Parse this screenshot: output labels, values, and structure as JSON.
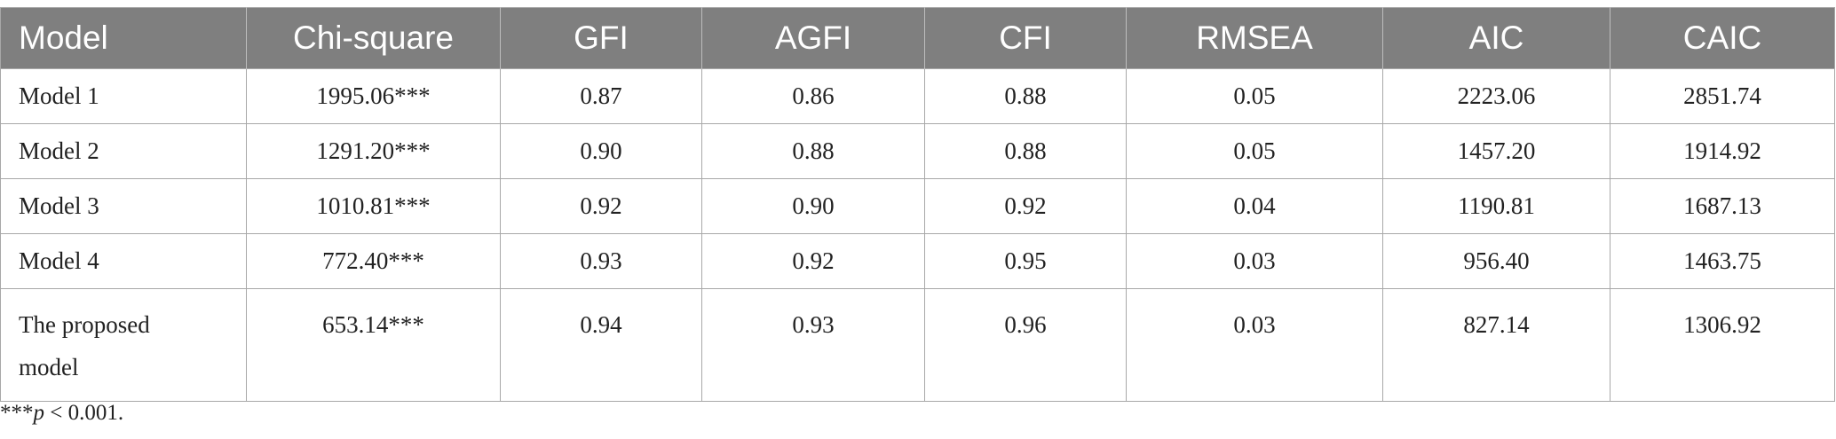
{
  "table": {
    "headers": [
      "Model",
      "Chi-square",
      "GFI",
      "AGFI",
      "CFI",
      "RMSEA",
      "AIC",
      "CAIC"
    ],
    "rows": [
      [
        "Model 1",
        "1995.06***",
        "0.87",
        "0.86",
        "0.88",
        "0.05",
        "2223.06",
        "2851.74"
      ],
      [
        "Model 2",
        "1291.20***",
        "0.90",
        "0.88",
        "0.88",
        "0.05",
        "1457.20",
        "1914.92"
      ],
      [
        "Model 3",
        "1010.81***",
        "0.92",
        "0.90",
        "0.92",
        "0.04",
        "1190.81",
        "1687.13"
      ],
      [
        "Model 4",
        "772.40***",
        "0.93",
        "0.92",
        "0.95",
        "0.03",
        "956.40",
        "1463.75"
      ],
      [
        "The proposed model",
        "653.14***",
        "0.94",
        "0.93",
        "0.96",
        "0.03",
        "827.14",
        "1306.92"
      ]
    ]
  },
  "footnote": {
    "stars": "***",
    "p": "p",
    "rest": " < 0.001."
  },
  "colors": {
    "header_bg": "#7f7f7f",
    "header_text": "#ffffff",
    "border": "#a8a8a8"
  }
}
